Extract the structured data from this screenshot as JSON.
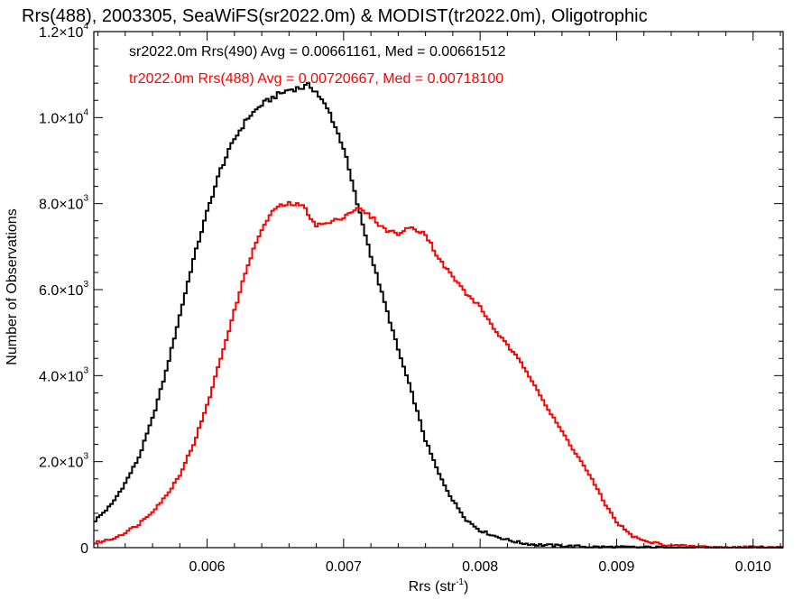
{
  "chart_data": {
    "type": "line",
    "title": "Rrs(488), 2003305, SeaWiFS(sr2022.0m) & MODIST(tr2022.0m), Oligotrophic",
    "xlabel": "Rrs (str",
    "xlabel_sup": "-1",
    "xlabel_close": ")",
    "ylabel": "Number of Observations",
    "xlim": [
      0.00517,
      0.01022
    ],
    "ylim": [
      0,
      12000
    ],
    "grid": false,
    "legend_position": "top-left",
    "x_ticks": [
      {
        "value": 0.006,
        "label": "0.006"
      },
      {
        "value": 0.007,
        "label": "0.007"
      },
      {
        "value": 0.008,
        "label": "0.008"
      },
      {
        "value": 0.009,
        "label": "0.009"
      },
      {
        "value": 0.01,
        "label": "0.010"
      }
    ],
    "y_ticks": [
      {
        "value": 0,
        "mant": "0",
        "exp": ""
      },
      {
        "value": 2000,
        "mant": "2.0×10",
        "exp": "3"
      },
      {
        "value": 4000,
        "mant": "4.0×10",
        "exp": "3"
      },
      {
        "value": 6000,
        "mant": "6.0×10",
        "exp": "3"
      },
      {
        "value": 8000,
        "mant": "8.0×10",
        "exp": "3"
      },
      {
        "value": 10000,
        "mant": "1.0×10",
        "exp": "4"
      },
      {
        "value": 12000,
        "mant": "1.2×10",
        "exp": "4"
      }
    ],
    "series": [
      {
        "name": "sr2022.0m Rrs(490) Avg = 0.00661161, Med = 0.00661512",
        "color": "#000000",
        "x": [
          0.00517,
          0.0053,
          0.0054,
          0.0055,
          0.0056,
          0.0057,
          0.0058,
          0.0059,
          0.006,
          0.0061,
          0.0062,
          0.0063,
          0.0064,
          0.0065,
          0.0066,
          0.0067,
          0.00675,
          0.0068,
          0.0069,
          0.007,
          0.0071,
          0.0072,
          0.0073,
          0.0074,
          0.0075,
          0.0076,
          0.0077,
          0.0078,
          0.0079,
          0.008,
          0.0081,
          0.0082,
          0.0083,
          0.0084,
          0.0086,
          0.0088,
          0.009,
          0.0092,
          0.0095,
          0.01022
        ],
        "values": [
          600,
          1000,
          1500,
          2100,
          3000,
          4100,
          5400,
          6700,
          7800,
          8800,
          9500,
          10000,
          10300,
          10500,
          10650,
          10700,
          10750,
          10600,
          10100,
          9300,
          8000,
          6800,
          5700,
          4600,
          3600,
          2500,
          1700,
          1100,
          650,
          400,
          280,
          180,
          110,
          70,
          40,
          20,
          10,
          5,
          2,
          0
        ]
      },
      {
        "name": "tr2022.0m Rrs(488) Avg = 0.00720667, Med = 0.00718100",
        "color": "#ff0000",
        "x": [
          0.00517,
          0.0053,
          0.0054,
          0.0055,
          0.0056,
          0.0057,
          0.0058,
          0.0059,
          0.006,
          0.0061,
          0.0062,
          0.0063,
          0.0064,
          0.0065,
          0.0066,
          0.0067,
          0.0068,
          0.0069,
          0.007,
          0.0071,
          0.0072,
          0.0073,
          0.0074,
          0.0075,
          0.0076,
          0.0077,
          0.0078,
          0.0079,
          0.008,
          0.0081,
          0.0082,
          0.0083,
          0.0084,
          0.0085,
          0.0086,
          0.0087,
          0.0088,
          0.0089,
          0.009,
          0.0091,
          0.0092,
          0.0094,
          0.0096,
          0.0098,
          0.01022
        ],
        "values": [
          100,
          200,
          350,
          550,
          850,
          1200,
          1700,
          2400,
          3300,
          4400,
          5500,
          6600,
          7400,
          7900,
          8000,
          7950,
          7500,
          7550,
          7700,
          7900,
          7700,
          7400,
          7300,
          7450,
          7300,
          6700,
          6300,
          5900,
          5600,
          5100,
          4700,
          4300,
          3800,
          3200,
          2700,
          2200,
          1700,
          1100,
          600,
          300,
          150,
          50,
          20,
          8,
          0
        ]
      }
    ]
  }
}
